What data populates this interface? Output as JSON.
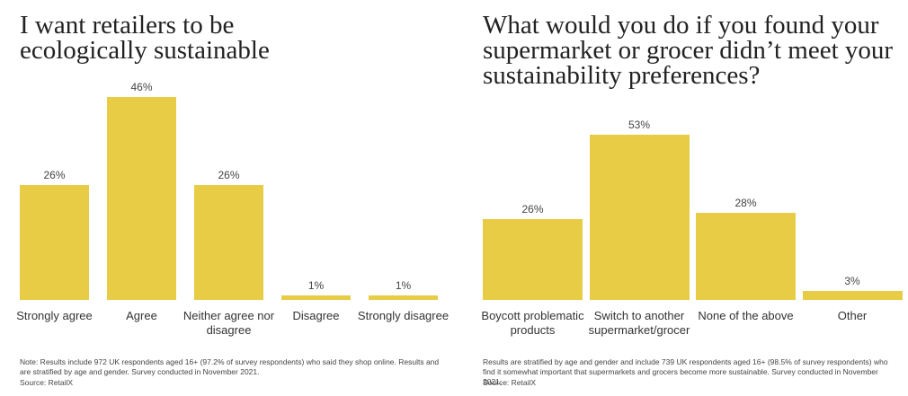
{
  "chart_data": [
    {
      "type": "bar",
      "title": "I want retailers to be ecologically sustainable",
      "categories": [
        "Strongly agree",
        "Agree",
        "Neither agree nor disagree",
        "Disagree",
        "Strongly disagree"
      ],
      "values": [
        26,
        46,
        26,
        1,
        1
      ],
      "value_labels": [
        "26%",
        "46%",
        "26%",
        "1%",
        "1%"
      ],
      "color": "#e8cc45",
      "ylim": [
        0,
        50
      ],
      "note": "Note: Results include 972 UK respondents aged 16+ (97.2% of survey respondents) who said they shop online. Results and are stratified by age and gender. Survey conducted in November 2021.",
      "source": "Source: RetailX"
    },
    {
      "type": "bar",
      "title": "What would you do if you found your supermarket or grocer didn’t meet your sustainability preferences?",
      "categories": [
        "Boycott problematic products",
        "Switch to another supermarket/grocer",
        "None of the above",
        "Other"
      ],
      "values": [
        26,
        53,
        28,
        3
      ],
      "value_labels": [
        "26%",
        "53%",
        "28%",
        "3%"
      ],
      "color": "#e8cc45",
      "ylim": [
        0,
        60
      ],
      "note": "Results are stratified by age and gender and include 739 UK respondents aged 16+ (98.5% of survey respondents) who find it somewhat important that supermarkets and grocers become more sustainable. Survey conducted in November 2021.",
      "source": "Source: RetailX"
    }
  ]
}
